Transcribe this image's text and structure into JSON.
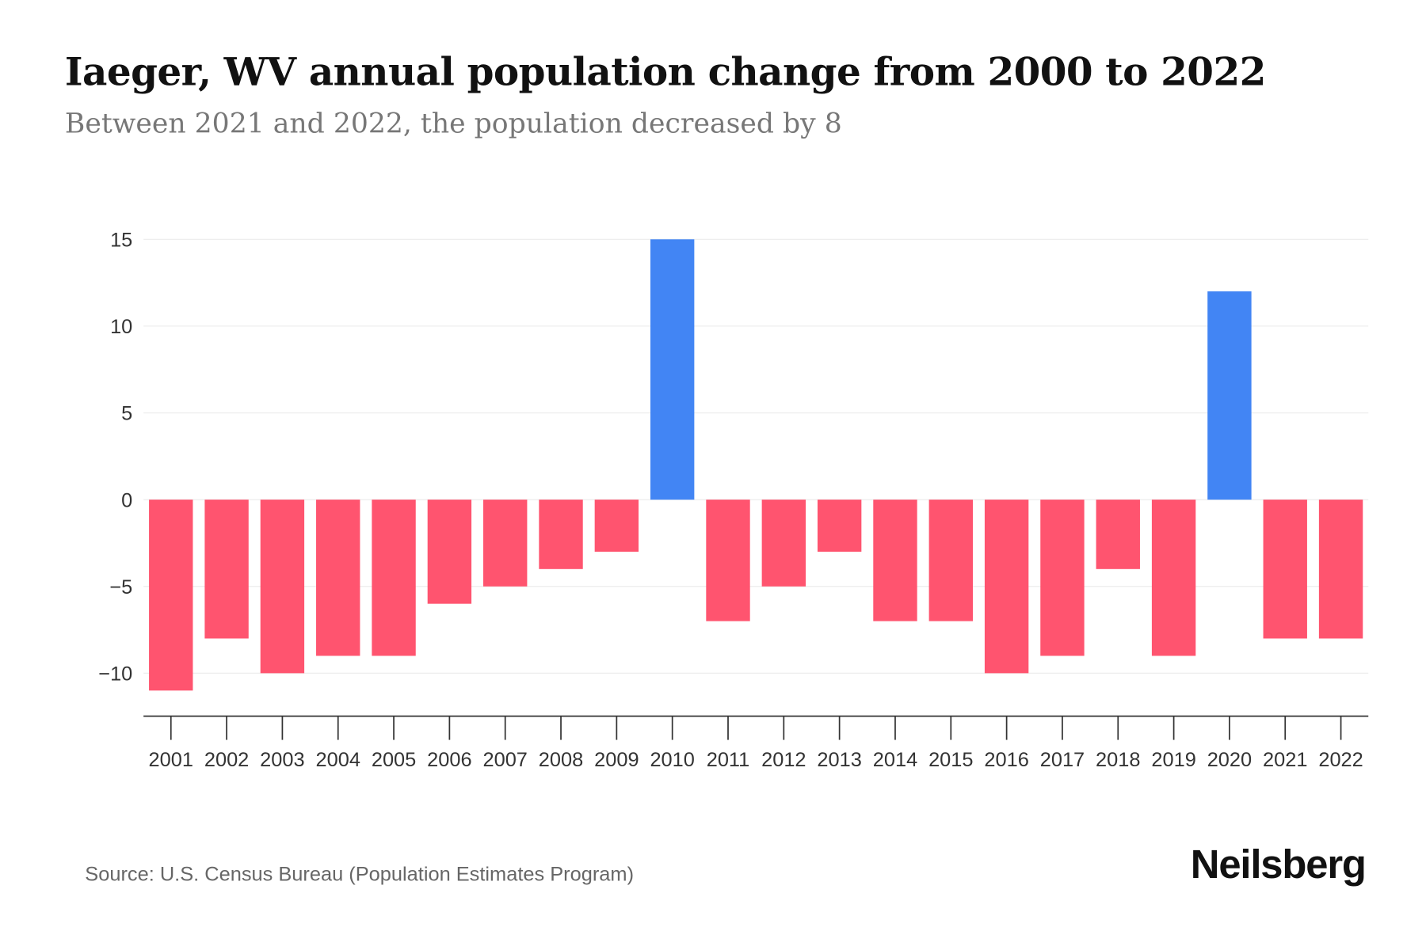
{
  "title": "Iaeger, WV annual population change from 2000 to 2022",
  "subtitle": "Between 2021 and 2022, the population decreased by 8",
  "source": "Source: U.S. Census Bureau (Population Estimates Program)",
  "brand": "Neilsberg",
  "colors": {
    "positive": "#4285F4",
    "negative": "#FF546F"
  },
  "chart_data": {
    "type": "bar",
    "title": "Iaeger, WV annual population change from 2000 to 2022",
    "xlabel": "",
    "ylabel": "",
    "ylim": [
      -12.5,
      15
    ],
    "yticks": [
      15,
      10,
      5,
      0,
      -5,
      -10
    ],
    "ytick_labels": [
      "15",
      "10",
      "5",
      "0",
      "−5",
      "−10"
    ],
    "grid": true,
    "categories": [
      "2001",
      "2002",
      "2003",
      "2004",
      "2005",
      "2006",
      "2007",
      "2008",
      "2009",
      "2010",
      "2011",
      "2012",
      "2013",
      "2014",
      "2015",
      "2016",
      "2017",
      "2018",
      "2019",
      "2020",
      "2021",
      "2022"
    ],
    "values": [
      -11,
      -8,
      -10,
      -9,
      -9,
      -6,
      -5,
      -4,
      -3,
      15,
      -7,
      -5,
      -3,
      -7,
      -7,
      -10,
      -9,
      -4,
      -9,
      12,
      -8,
      -8
    ]
  }
}
